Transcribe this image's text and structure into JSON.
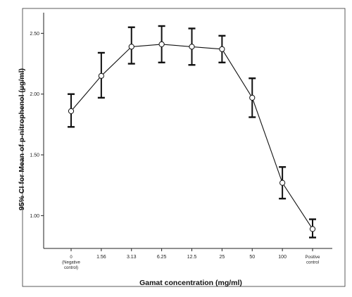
{
  "chart_data": {
    "type": "line",
    "xlabel": "Gamat concentration (mg/ml)",
    "ylabel": "95% CI for Mean of p-nitrophenol (µg/ml)",
    "categories": [
      [
        "0",
        "(Negative",
        "control)"
      ],
      [
        "1.56"
      ],
      [
        "3.13"
      ],
      [
        "6.25"
      ],
      [
        "12.5"
      ],
      [
        "25"
      ],
      [
        "50"
      ],
      [
        "100"
      ],
      [
        "Positive",
        "control"
      ]
    ],
    "series": [
      {
        "mean": [
          1.86,
          2.15,
          2.39,
          2.41,
          2.39,
          2.37,
          1.97,
          1.27,
          0.89
        ],
        "lower": [
          1.73,
          1.97,
          2.25,
          2.26,
          2.24,
          2.26,
          1.81,
          1.14,
          0.82
        ],
        "upper": [
          2.0,
          2.34,
          2.55,
          2.56,
          2.54,
          2.48,
          2.13,
          1.4,
          0.97
        ]
      }
    ],
    "yticks": [
      "1.00",
      "1.50",
      "2.00",
      "2.50"
    ],
    "ylim": [
      0.73,
      2.67
    ],
    "grid": false,
    "legend": "none"
  }
}
